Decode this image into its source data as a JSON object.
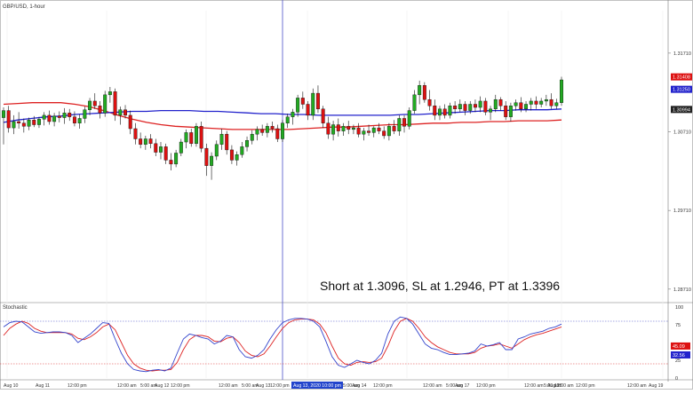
{
  "chart_data": {
    "type": "candlestick",
    "title": "GBP/USD, 1-hour",
    "annotation": "Short at 1.3096, SL at 1.2946, PT at 1.3396",
    "colors": {
      "up": "#22aa22",
      "down": "#dd1111",
      "ma_fast": "#2222cc",
      "ma_slow": "#dd2222",
      "crosshair": "#4b50c8",
      "stoch_k": "#3344cc",
      "stoch_d": "#dd2222",
      "stoch_upper_line": "#4b50c8",
      "stoch_lower_line": "#dd3333"
    },
    "price_axis": {
      "ylim": [
        1.2855,
        1.3225
      ],
      "ticks": [
        "1.31710",
        "1.30710",
        "1.29710",
        "1.28710"
      ],
      "tick_values": [
        1.3171,
        1.3071,
        1.2971,
        1.2871
      ],
      "price_tags": [
        {
          "label": "1.31408",
          "value": 1.31408,
          "color": "#dd1111"
        },
        {
          "label": "1.31250",
          "value": 1.3125,
          "color": "#2222cc"
        },
        {
          "label": "1.30994",
          "value": 1.30994,
          "color": "#222222"
        }
      ]
    },
    "candles": [
      {
        "o": 1.3089,
        "h": 1.3102,
        "l": 1.3055,
        "c": 1.3098
      },
      {
        "o": 1.3098,
        "h": 1.3104,
        "l": 1.307,
        "c": 1.3076
      },
      {
        "o": 1.3076,
        "h": 1.3092,
        "l": 1.3068,
        "c": 1.3084
      },
      {
        "o": 1.3084,
        "h": 1.3096,
        "l": 1.3075,
        "c": 1.3082
      },
      {
        "o": 1.3082,
        "h": 1.3088,
        "l": 1.307,
        "c": 1.3078
      },
      {
        "o": 1.3078,
        "h": 1.3089,
        "l": 1.3073,
        "c": 1.3086
      },
      {
        "o": 1.3086,
        "h": 1.3091,
        "l": 1.3077,
        "c": 1.308
      },
      {
        "o": 1.308,
        "h": 1.309,
        "l": 1.3076,
        "c": 1.3087
      },
      {
        "o": 1.3087,
        "h": 1.3096,
        "l": 1.3079,
        "c": 1.3092
      },
      {
        "o": 1.3092,
        "h": 1.3098,
        "l": 1.308,
        "c": 1.3084
      },
      {
        "o": 1.3084,
        "h": 1.3095,
        "l": 1.3078,
        "c": 1.3091
      },
      {
        "o": 1.3091,
        "h": 1.3097,
        "l": 1.3083,
        "c": 1.3089
      },
      {
        "o": 1.3089,
        "h": 1.3101,
        "l": 1.3081,
        "c": 1.3095
      },
      {
        "o": 1.3095,
        "h": 1.31,
        "l": 1.3085,
        "c": 1.309
      },
      {
        "o": 1.309,
        "h": 1.3097,
        "l": 1.3078,
        "c": 1.3082
      },
      {
        "o": 1.3082,
        "h": 1.3093,
        "l": 1.3075,
        "c": 1.3088
      },
      {
        "o": 1.3088,
        "h": 1.3103,
        "l": 1.3082,
        "c": 1.3099
      },
      {
        "o": 1.3099,
        "h": 1.3114,
        "l": 1.3092,
        "c": 1.311
      },
      {
        "o": 1.311,
        "h": 1.312,
        "l": 1.31,
        "c": 1.3104
      },
      {
        "o": 1.3104,
        "h": 1.311,
        "l": 1.3088,
        "c": 1.3095
      },
      {
        "o": 1.3095,
        "h": 1.3123,
        "l": 1.309,
        "c": 1.3118
      },
      {
        "o": 1.3118,
        "h": 1.3128,
        "l": 1.3108,
        "c": 1.3122
      },
      {
        "o": 1.3122,
        "h": 1.3126,
        "l": 1.3085,
        "c": 1.3092
      },
      {
        "o": 1.3092,
        "h": 1.3103,
        "l": 1.308,
        "c": 1.3099
      },
      {
        "o": 1.3099,
        "h": 1.3105,
        "l": 1.3088,
        "c": 1.3092
      },
      {
        "o": 1.3092,
        "h": 1.3098,
        "l": 1.3068,
        "c": 1.3075
      },
      {
        "o": 1.3075,
        "h": 1.3082,
        "l": 1.3055,
        "c": 1.3062
      },
      {
        "o": 1.3062,
        "h": 1.307,
        "l": 1.305,
        "c": 1.3055
      },
      {
        "o": 1.3055,
        "h": 1.3066,
        "l": 1.3048,
        "c": 1.3062
      },
      {
        "o": 1.3062,
        "h": 1.3068,
        "l": 1.305,
        "c": 1.3056
      },
      {
        "o": 1.3056,
        "h": 1.3062,
        "l": 1.304,
        "c": 1.3045
      },
      {
        "o": 1.3045,
        "h": 1.3058,
        "l": 1.3036,
        "c": 1.3052
      },
      {
        "o": 1.3052,
        "h": 1.3056,
        "l": 1.303,
        "c": 1.3035
      },
      {
        "o": 1.3035,
        "h": 1.3044,
        "l": 1.3022,
        "c": 1.303
      },
      {
        "o": 1.303,
        "h": 1.3048,
        "l": 1.3026,
        "c": 1.3044
      },
      {
        "o": 1.3044,
        "h": 1.3062,
        "l": 1.304,
        "c": 1.3058
      },
      {
        "o": 1.3058,
        "h": 1.3074,
        "l": 1.305,
        "c": 1.307
      },
      {
        "o": 1.307,
        "h": 1.3075,
        "l": 1.3052,
        "c": 1.3056
      },
      {
        "o": 1.3056,
        "h": 1.3082,
        "l": 1.3052,
        "c": 1.3078
      },
      {
        "o": 1.3078,
        "h": 1.3084,
        "l": 1.3045,
        "c": 1.305
      },
      {
        "o": 1.305,
        "h": 1.3056,
        "l": 1.3015,
        "c": 1.3028
      },
      {
        "o": 1.3028,
        "h": 1.3045,
        "l": 1.301,
        "c": 1.304
      },
      {
        "o": 1.304,
        "h": 1.306,
        "l": 1.3035,
        "c": 1.3055
      },
      {
        "o": 1.3055,
        "h": 1.3075,
        "l": 1.3048,
        "c": 1.3068
      },
      {
        "o": 1.3068,
        "h": 1.3072,
        "l": 1.3042,
        "c": 1.3048
      },
      {
        "o": 1.3048,
        "h": 1.3054,
        "l": 1.303,
        "c": 1.3035
      },
      {
        "o": 1.3035,
        "h": 1.3046,
        "l": 1.3028,
        "c": 1.3042
      },
      {
        "o": 1.3042,
        "h": 1.3058,
        "l": 1.3038,
        "c": 1.3052
      },
      {
        "o": 1.3052,
        "h": 1.3065,
        "l": 1.3046,
        "c": 1.306
      },
      {
        "o": 1.306,
        "h": 1.3073,
        "l": 1.3055,
        "c": 1.3068
      },
      {
        "o": 1.3068,
        "h": 1.3078,
        "l": 1.306,
        "c": 1.3074
      },
      {
        "o": 1.3074,
        "h": 1.308,
        "l": 1.3066,
        "c": 1.307
      },
      {
        "o": 1.307,
        "h": 1.3082,
        "l": 1.3064,
        "c": 1.3078
      },
      {
        "o": 1.3078,
        "h": 1.3084,
        "l": 1.307,
        "c": 1.3075
      },
      {
        "o": 1.3075,
        "h": 1.308,
        "l": 1.3058,
        "c": 1.3062
      },
      {
        "o": 1.3062,
        "h": 1.3086,
        "l": 1.3058,
        "c": 1.3082
      },
      {
        "o": 1.3082,
        "h": 1.3094,
        "l": 1.3076,
        "c": 1.309
      },
      {
        "o": 1.309,
        "h": 1.31,
        "l": 1.308,
        "c": 1.3096
      },
      {
        "o": 1.3096,
        "h": 1.3118,
        "l": 1.309,
        "c": 1.3114
      },
      {
        "o": 1.3114,
        "h": 1.3122,
        "l": 1.31,
        "c": 1.3106
      },
      {
        "o": 1.3106,
        "h": 1.311,
        "l": 1.3086,
        "c": 1.3092
      },
      {
        "o": 1.3092,
        "h": 1.3126,
        "l": 1.3086,
        "c": 1.312
      },
      {
        "o": 1.312,
        "h": 1.313,
        "l": 1.3095,
        "c": 1.31
      },
      {
        "o": 1.31,
        "h": 1.3104,
        "l": 1.3076,
        "c": 1.3082
      },
      {
        "o": 1.3082,
        "h": 1.309,
        "l": 1.3062,
        "c": 1.3068
      },
      {
        "o": 1.3068,
        "h": 1.3085,
        "l": 1.306,
        "c": 1.308
      },
      {
        "o": 1.308,
        "h": 1.3088,
        "l": 1.3065,
        "c": 1.3072
      },
      {
        "o": 1.3072,
        "h": 1.3082,
        "l": 1.3066,
        "c": 1.3078
      },
      {
        "o": 1.3078,
        "h": 1.3085,
        "l": 1.3068,
        "c": 1.3074
      },
      {
        "o": 1.3074,
        "h": 1.308,
        "l": 1.3068,
        "c": 1.3076
      },
      {
        "o": 1.3076,
        "h": 1.3082,
        "l": 1.3064,
        "c": 1.3068
      },
      {
        "o": 1.3068,
        "h": 1.3076,
        "l": 1.306,
        "c": 1.3072
      },
      {
        "o": 1.3072,
        "h": 1.308,
        "l": 1.3066,
        "c": 1.307
      },
      {
        "o": 1.307,
        "h": 1.3078,
        "l": 1.3064,
        "c": 1.3076
      },
      {
        "o": 1.3076,
        "h": 1.3082,
        "l": 1.3068,
        "c": 1.3072
      },
      {
        "o": 1.3072,
        "h": 1.3078,
        "l": 1.3062,
        "c": 1.3066
      },
      {
        "o": 1.3066,
        "h": 1.3082,
        "l": 1.306,
        "c": 1.3078
      },
      {
        "o": 1.3078,
        "h": 1.3086,
        "l": 1.3068,
        "c": 1.3072
      },
      {
        "o": 1.3072,
        "h": 1.3092,
        "l": 1.3066,
        "c": 1.3088
      },
      {
        "o": 1.3088,
        "h": 1.3092,
        "l": 1.307,
        "c": 1.3078
      },
      {
        "o": 1.3078,
        "h": 1.3102,
        "l": 1.3074,
        "c": 1.3098
      },
      {
        "o": 1.3098,
        "h": 1.3124,
        "l": 1.3094,
        "c": 1.3118
      },
      {
        "o": 1.3118,
        "h": 1.3136,
        "l": 1.3106,
        "c": 1.313
      },
      {
        "o": 1.313,
        "h": 1.3134,
        "l": 1.3108,
        "c": 1.3112
      },
      {
        "o": 1.3112,
        "h": 1.3124,
        "l": 1.3098,
        "c": 1.3104
      },
      {
        "o": 1.3104,
        "h": 1.3112,
        "l": 1.3086,
        "c": 1.3092
      },
      {
        "o": 1.3092,
        "h": 1.3104,
        "l": 1.3086,
        "c": 1.31
      },
      {
        "o": 1.31,
        "h": 1.3106,
        "l": 1.3088,
        "c": 1.3092
      },
      {
        "o": 1.3092,
        "h": 1.3108,
        "l": 1.3088,
        "c": 1.3104
      },
      {
        "o": 1.3104,
        "h": 1.311,
        "l": 1.3094,
        "c": 1.31
      },
      {
        "o": 1.31,
        "h": 1.3112,
        "l": 1.3096,
        "c": 1.3106
      },
      {
        "o": 1.3106,
        "h": 1.311,
        "l": 1.3092,
        "c": 1.3098
      },
      {
        "o": 1.3098,
        "h": 1.311,
        "l": 1.3094,
        "c": 1.3106
      },
      {
        "o": 1.3106,
        "h": 1.3112,
        "l": 1.3096,
        "c": 1.3102
      },
      {
        "o": 1.3102,
        "h": 1.3116,
        "l": 1.3096,
        "c": 1.311
      },
      {
        "o": 1.311,
        "h": 1.3114,
        "l": 1.3092,
        "c": 1.3096
      },
      {
        "o": 1.3096,
        "h": 1.3104,
        "l": 1.3086,
        "c": 1.31
      },
      {
        "o": 1.31,
        "h": 1.3118,
        "l": 1.3096,
        "c": 1.3112
      },
      {
        "o": 1.3112,
        "h": 1.3115,
        "l": 1.3098,
        "c": 1.3104
      },
      {
        "o": 1.3104,
        "h": 1.311,
        "l": 1.3086,
        "c": 1.309
      },
      {
        "o": 1.309,
        "h": 1.3108,
        "l": 1.3084,
        "c": 1.3104
      },
      {
        "o": 1.3104,
        "h": 1.3112,
        "l": 1.3098,
        "c": 1.3108
      },
      {
        "o": 1.3108,
        "h": 1.3115,
        "l": 1.3096,
        "c": 1.31
      },
      {
        "o": 1.31,
        "h": 1.311,
        "l": 1.3096,
        "c": 1.3106
      },
      {
        "o": 1.3106,
        "h": 1.3114,
        "l": 1.3098,
        "c": 1.311
      },
      {
        "o": 1.311,
        "h": 1.3116,
        "l": 1.31,
        "c": 1.3106
      },
      {
        "o": 1.3106,
        "h": 1.3114,
        "l": 1.3102,
        "c": 1.311
      },
      {
        "o": 1.311,
        "h": 1.3118,
        "l": 1.3104,
        "c": 1.3112
      },
      {
        "o": 1.3112,
        "h": 1.312,
        "l": 1.31,
        "c": 1.3104
      },
      {
        "o": 1.3104,
        "h": 1.3113,
        "l": 1.31,
        "c": 1.3108
      },
      {
        "o": 1.3108,
        "h": 1.3141,
        "l": 1.3104,
        "c": 1.3137
      }
    ],
    "ma_fast": [
      1.3083,
      1.3086,
      1.3088,
      1.309,
      1.3091,
      1.3093,
      1.3094,
      1.3095,
      1.3096,
      1.3097,
      1.3097,
      1.3098,
      1.3098,
      1.3098,
      1.3097,
      1.3097,
      1.3096,
      1.3095,
      1.3094,
      1.3094,
      1.3093,
      1.3093,
      1.3092,
      1.3092,
      1.3092,
      1.3092,
      1.3092,
      1.3092,
      1.3093,
      1.3093,
      1.3094,
      1.3095,
      1.3096,
      1.3097,
      1.3098,
      1.3098,
      1.3099,
      1.3099,
      1.3099,
      1.31
    ],
    "ma_slow": [
      1.3106,
      1.3107,
      1.3108,
      1.3108,
      1.3108,
      1.3106,
      1.3103,
      1.3098,
      1.3092,
      1.3087,
      1.3083,
      1.308,
      1.3078,
      1.3077,
      1.3076,
      1.3075,
      1.3074,
      1.3074,
      1.3074,
      1.3074,
      1.3074,
      1.3075,
      1.3076,
      1.3077,
      1.3077,
      1.3078,
      1.3079,
      1.308,
      1.308,
      1.3081,
      1.3082,
      1.3082,
      1.3083,
      1.3083,
      1.3084,
      1.3084,
      1.3085,
      1.3085,
      1.3085,
      1.3086
    ],
    "stochastic": {
      "label": "Stochastic",
      "ylim": [
        0,
        100
      ],
      "ticks": [
        "100",
        "75",
        "25",
        "0"
      ],
      "tick_values": [
        100,
        75,
        25,
        0
      ],
      "upper_level": 80,
      "lower_level": 20,
      "k_tag": {
        "label": "32.56",
        "value": 32.56
      },
      "d_tag": {
        "label": "45.09",
        "value": 45.09
      },
      "k": [
        72,
        78,
        80,
        79,
        72,
        65,
        63,
        64,
        65,
        65,
        64,
        60,
        50,
        56,
        62,
        70,
        78,
        77,
        55,
        35,
        20,
        12,
        10,
        9,
        11,
        12,
        10,
        14,
        35,
        55,
        62,
        60,
        57,
        55,
        48,
        52,
        60,
        58,
        40,
        30,
        28,
        32,
        40,
        55,
        68,
        78,
        82,
        84,
        84,
        83,
        80,
        72,
        52,
        30,
        18,
        15,
        20,
        25,
        22,
        20,
        25,
        35,
        62,
        80,
        86,
        84,
        76,
        62,
        48,
        42,
        40,
        36,
        33,
        33,
        34,
        35,
        38,
        48,
        45,
        47,
        50,
        40,
        40,
        55,
        58,
        62,
        64,
        66,
        70,
        72,
        76
      ],
      "d": [
        60,
        70,
        76,
        80,
        77,
        70,
        66,
        64,
        64,
        64,
        64,
        62,
        56,
        54,
        58,
        64,
        72,
        76,
        68,
        50,
        32,
        20,
        14,
        11,
        10,
        11,
        11,
        12,
        22,
        40,
        54,
        60,
        60,
        58,
        52,
        51,
        56,
        58,
        50,
        38,
        32,
        30,
        34,
        45,
        58,
        70,
        78,
        82,
        83,
        83,
        82,
        76,
        64,
        45,
        28,
        20,
        18,
        22,
        23,
        22,
        23,
        28,
        45,
        66,
        80,
        84,
        80,
        70,
        58,
        50,
        44,
        40,
        36,
        34,
        34,
        34,
        36,
        42,
        45,
        46,
        48,
        45,
        42,
        48,
        54,
        58,
        61,
        63,
        66,
        69,
        72
      ]
    },
    "time_labels": [
      "Aug 10",
      "Aug 11",
      "12:00 pm",
      "12:00 am",
      "5:00 am",
      "Aug 12",
      "12:00 pm",
      "12:00 am",
      "5:00 am",
      "Aug 13",
      "12:00 pm",
      "Aug 13, 2020 10:00 pm",
      "5:00 am",
      "Aug 14",
      "12:00 pm",
      "12:00 am",
      "5:00 am",
      "Aug 17",
      "12:00 pm",
      "12:00 am",
      "5:00 am",
      "Aug 18",
      "12:00 am",
      "12:00 pm",
      "12:00 am",
      "Aug 19"
    ],
    "crosshair_label": "Aug 13, 2020 10:00 pm",
    "crosshair_candle_index": 55
  }
}
